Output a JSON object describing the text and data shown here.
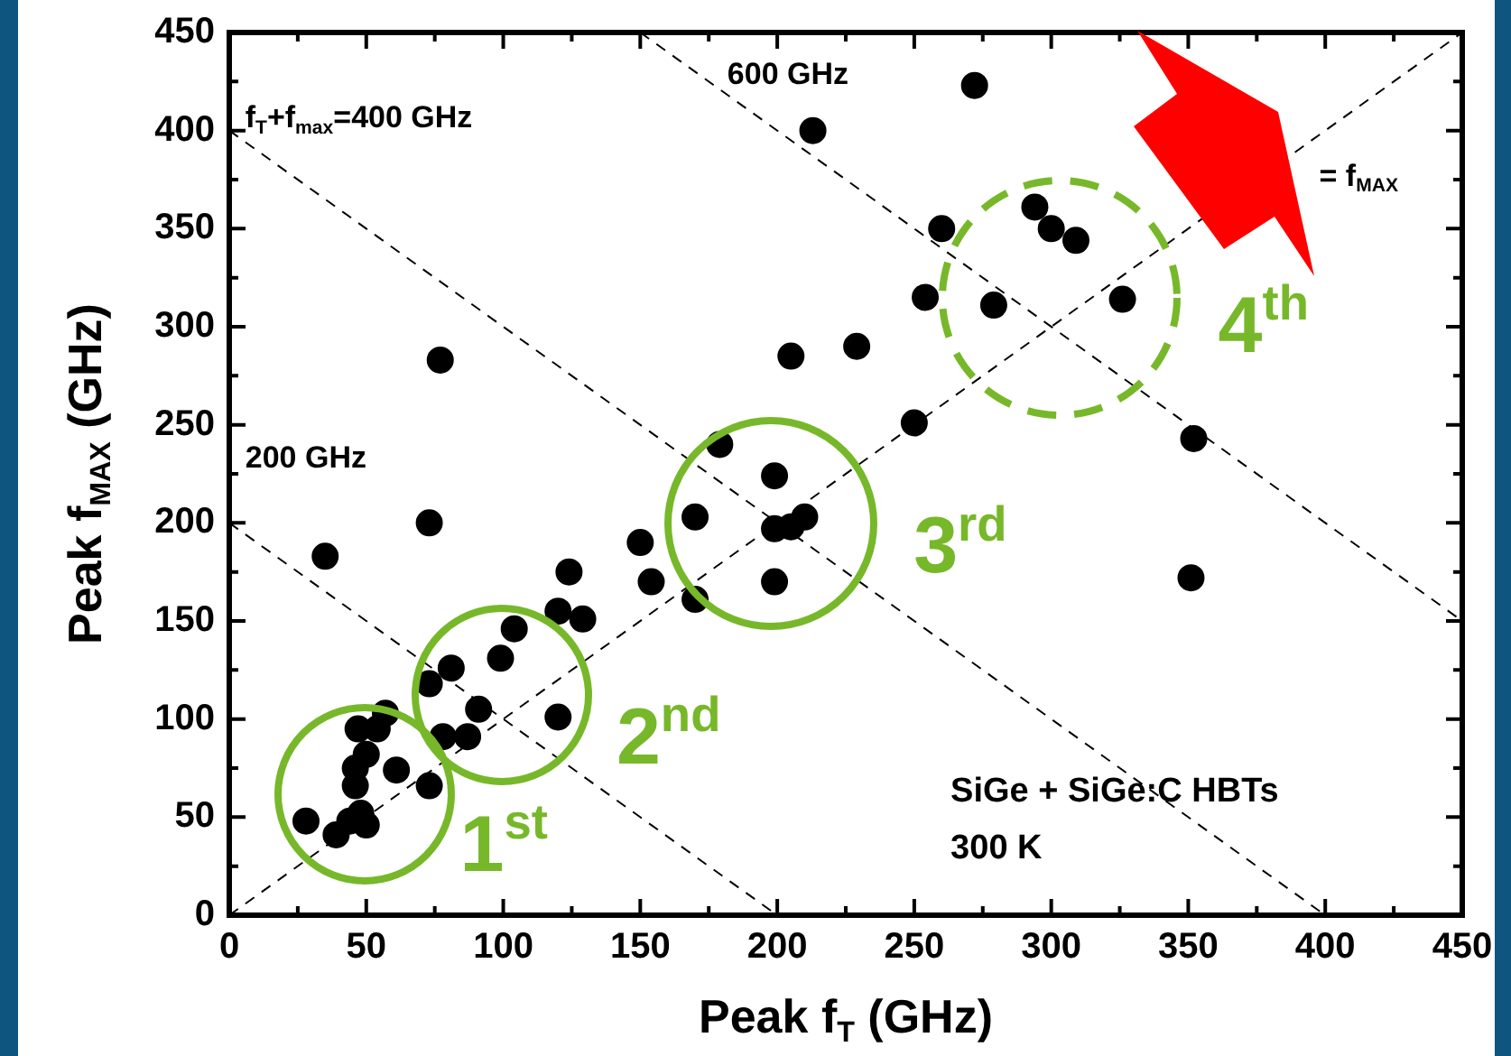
{
  "chart_data": {
    "type": "scatter",
    "xlabel": "Peak f$_{T}$ (GHz)",
    "ylabel": "Peak f$_{MAX}$ (GHz)",
    "xlim": [
      0,
      450
    ],
    "ylim": [
      0,
      450
    ],
    "xticks": [
      0,
      {
        "value": 25,
        "label": null
      },
      50,
      {
        "value": 75,
        "label": null
      },
      100,
      {
        "value": 125,
        "label": null
      },
      150,
      {
        "value": 175,
        "label": null
      },
      200,
      {
        "value": 225,
        "label": null
      },
      250,
      {
        "value": 275,
        "label": null
      },
      300,
      {
        "value": 325,
        "label": null
      },
      350,
      {
        "value": 375,
        "label": null
      },
      400,
      {
        "value": 425,
        "label": null
      },
      450
    ],
    "yticks": [
      0,
      {
        "value": 25,
        "label": null
      },
      50,
      {
        "value": 75,
        "label": null
      },
      100,
      {
        "value": 125,
        "label": null
      },
      150,
      {
        "value": 175,
        "label": null
      },
      200,
      {
        "value": 225,
        "label": null
      },
      250,
      {
        "value": 275,
        "label": null
      },
      300,
      {
        "value": 325,
        "label": null
      },
      350,
      {
        "value": 375,
        "label": null
      },
      400,
      {
        "value": 425,
        "label": null
      },
      450
    ],
    "marker": "circle",
    "series": [
      {
        "type": "scatter",
        "color": "#000000",
        "x": [
          28,
          39,
          44,
          50,
          48,
          46,
          46,
          50,
          47,
          54,
          57,
          61,
          73,
          73,
          81,
          78,
          87,
          91,
          99,
          104,
          120,
          120,
          124,
          129,
          150,
          154,
          170,
          170,
          179,
          199,
          199,
          205,
          210,
          199,
          35,
          73,
          77,
          205,
          229,
          213,
          272,
          260,
          254,
          294,
          300,
          309,
          279,
          326,
          250,
          352,
          351
        ],
        "values": [
          48,
          41,
          48,
          46,
          52,
          66,
          75,
          82,
          95,
          95,
          103,
          74,
          66,
          118,
          126,
          91,
          91,
          105,
          131,
          146,
          101,
          155,
          175,
          151,
          190,
          170,
          161,
          203,
          240,
          224,
          197,
          198,
          203,
          170,
          183,
          200,
          283,
          285,
          290,
          400,
          423,
          350,
          315,
          361,
          350,
          344,
          311,
          314,
          251,
          243,
          172
        ]
      },
      {
        "type": "line",
        "color": "#000000",
        "line_style": "dashed",
        "marker": "none",
        "x": [
          0,
          450
        ],
        "values": [
          0,
          450
        ]
      },
      {
        "type": "line",
        "color": "#000000",
        "line_style": "dashed",
        "marker": "none",
        "x": [
          0,
          200
        ],
        "values": [
          200,
          0
        ]
      },
      {
        "type": "line",
        "color": "#000000",
        "line_style": "dashed",
        "marker": "none",
        "x": [
          0,
          400
        ],
        "values": [
          400,
          0
        ]
      },
      {
        "type": "line",
        "color": "#000000",
        "line_style": "dashed",
        "marker": "none",
        "x": [
          150,
          450
        ],
        "values": [
          450,
          150
        ]
      }
    ],
    "annotations": [
      "200 GHz",
      "f$_{T}$+f$_{max}$=400 GHz",
      "600 GHz",
      "= f$_{MAX}$",
      "1$^{st}$",
      "2$^{nd}$",
      "3$^{rd}$",
      "4$^{th}$",
      "SiGe + SiGe:C HBTs",
      "300 K"
    ]
  }
}
